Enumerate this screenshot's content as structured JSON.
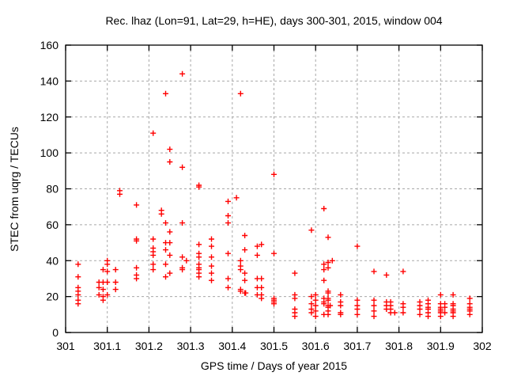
{
  "page": {
    "background": "#ffffff"
  },
  "chart_data": {
    "type": "scatter",
    "title": "Rec. lhaz (Lon=91, Lat=29, h=HE), days 300-301, 2015, window 004",
    "xlabel": "GPS time / Days of year 2015",
    "ylabel": "STEC from uqrg / TECUs",
    "xlim": [
      301,
      302
    ],
    "ylim": [
      0,
      160
    ],
    "xtick_labels": [
      "301",
      "301.1",
      "301.2",
      "301.3",
      "301.4",
      "301.5",
      "301.6",
      "301.7",
      "301.8",
      "301.9",
      "302"
    ],
    "xtick_values": [
      301,
      301.1,
      301.2,
      301.3,
      301.4,
      301.5,
      301.6,
      301.7,
      301.8,
      301.9,
      302
    ],
    "ytick_labels": [
      "0",
      "20",
      "40",
      "60",
      "80",
      "100",
      "120",
      "140",
      "160"
    ],
    "ytick_values": [
      0,
      20,
      40,
      60,
      80,
      100,
      120,
      140,
      160
    ],
    "grid": true,
    "grid_style": "dashed",
    "grid_color": "#a8a8a8",
    "frame_color": "#000000",
    "legend": "none",
    "marker": {
      "shape": "plus",
      "color": "#ff0000",
      "size": 7
    },
    "series": [
      {
        "name": "STEC",
        "points": [
          [
            301.03,
            38
          ],
          [
            301.03,
            31
          ],
          [
            301.03,
            25
          ],
          [
            301.03,
            23
          ],
          [
            301.03,
            21
          ],
          [
            301.03,
            18
          ],
          [
            301.03,
            16
          ],
          [
            301.08,
            28
          ],
          [
            301.08,
            25
          ],
          [
            301.08,
            21
          ],
          [
            301.09,
            35
          ],
          [
            301.09,
            28
          ],
          [
            301.09,
            24
          ],
          [
            301.09,
            20
          ],
          [
            301.09,
            18
          ],
          [
            301.1,
            40
          ],
          [
            301.1,
            38
          ],
          [
            301.1,
            34
          ],
          [
            301.1,
            28
          ],
          [
            301.1,
            21
          ],
          [
            301.12,
            35
          ],
          [
            301.12,
            28
          ],
          [
            301.12,
            24
          ],
          [
            301.13,
            79
          ],
          [
            301.13,
            77
          ],
          [
            301.17,
            71
          ],
          [
            301.17,
            52
          ],
          [
            301.17,
            51
          ],
          [
            301.17,
            36
          ],
          [
            301.17,
            32
          ],
          [
            301.17,
            30
          ],
          [
            301.21,
            111
          ],
          [
            301.21,
            52
          ],
          [
            301.21,
            47
          ],
          [
            301.21,
            45
          ],
          [
            301.21,
            43
          ],
          [
            301.21,
            38
          ],
          [
            301.21,
            35
          ],
          [
            301.23,
            68
          ],
          [
            301.23,
            66
          ],
          [
            301.24,
            133
          ],
          [
            301.24,
            61
          ],
          [
            301.24,
            50
          ],
          [
            301.24,
            46
          ],
          [
            301.24,
            38
          ],
          [
            301.24,
            31
          ],
          [
            301.25,
            102
          ],
          [
            301.25,
            95
          ],
          [
            301.25,
            56
          ],
          [
            301.25,
            50
          ],
          [
            301.25,
            43
          ],
          [
            301.25,
            33
          ],
          [
            301.28,
            144
          ],
          [
            301.28,
            92
          ],
          [
            301.28,
            61
          ],
          [
            301.28,
            42
          ],
          [
            301.28,
            36
          ],
          [
            301.28,
            35
          ],
          [
            301.29,
            40
          ],
          [
            301.32,
            82
          ],
          [
            301.32,
            81
          ],
          [
            301.32,
            49
          ],
          [
            301.32,
            44
          ],
          [
            301.32,
            42
          ],
          [
            301.32,
            38
          ],
          [
            301.32,
            36
          ],
          [
            301.32,
            35
          ],
          [
            301.32,
            33
          ],
          [
            301.32,
            31
          ],
          [
            301.35,
            52
          ],
          [
            301.35,
            48
          ],
          [
            301.35,
            42
          ],
          [
            301.35,
            37
          ],
          [
            301.35,
            33
          ],
          [
            301.35,
            29
          ],
          [
            301.39,
            73
          ],
          [
            301.39,
            65
          ],
          [
            301.39,
            61
          ],
          [
            301.39,
            44
          ],
          [
            301.39,
            30
          ],
          [
            301.39,
            25
          ],
          [
            301.41,
            75
          ],
          [
            301.42,
            133
          ],
          [
            301.42,
            40
          ],
          [
            301.42,
            37
          ],
          [
            301.42,
            35
          ],
          [
            301.42,
            24
          ],
          [
            301.42,
            23
          ],
          [
            301.43,
            54
          ],
          [
            301.43,
            46
          ],
          [
            301.43,
            33
          ],
          [
            301.43,
            29
          ],
          [
            301.43,
            22
          ],
          [
            301.432,
            22
          ],
          [
            301.46,
            48
          ],
          [
            301.46,
            43
          ],
          [
            301.46,
            30
          ],
          [
            301.46,
            25
          ],
          [
            301.46,
            21
          ],
          [
            301.47,
            49
          ],
          [
            301.47,
            30
          ],
          [
            301.47,
            25
          ],
          [
            301.47,
            21
          ],
          [
            301.47,
            19
          ],
          [
            301.5,
            88
          ],
          [
            301.5,
            44
          ],
          [
            301.5,
            19
          ],
          [
            301.5,
            18
          ],
          [
            301.5,
            17
          ],
          [
            301.5,
            16
          ],
          [
            301.55,
            33
          ],
          [
            301.55,
            21
          ],
          [
            301.55,
            19
          ],
          [
            301.55,
            13
          ],
          [
            301.55,
            11
          ],
          [
            301.55,
            9
          ],
          [
            301.59,
            57
          ],
          [
            301.59,
            20
          ],
          [
            301.59,
            16
          ],
          [
            301.59,
            13
          ],
          [
            301.59,
            11
          ],
          [
            301.6,
            21
          ],
          [
            301.6,
            18
          ],
          [
            301.6,
            15
          ],
          [
            301.6,
            12
          ],
          [
            301.6,
            9
          ],
          [
            301.62,
            69
          ],
          [
            301.62,
            38
          ],
          [
            301.62,
            35
          ],
          [
            301.62,
            29
          ],
          [
            301.62,
            19
          ],
          [
            301.62,
            17
          ],
          [
            301.62,
            16
          ],
          [
            301.62,
            10
          ],
          [
            301.63,
            53
          ],
          [
            301.63,
            39
          ],
          [
            301.63,
            36
          ],
          [
            301.63,
            23
          ],
          [
            301.63,
            22
          ],
          [
            301.63,
            19
          ],
          [
            301.63,
            18
          ],
          [
            301.63,
            15
          ],
          [
            301.635,
            15
          ],
          [
            301.63,
            14
          ],
          [
            301.63,
            12
          ],
          [
            301.63,
            10
          ],
          [
            301.64,
            40
          ],
          [
            301.66,
            21
          ],
          [
            301.66,
            17
          ],
          [
            301.66,
            15
          ],
          [
            301.66,
            11
          ],
          [
            301.66,
            10
          ],
          [
            301.7,
            48
          ],
          [
            301.7,
            18
          ],
          [
            301.7,
            15
          ],
          [
            301.7,
            13
          ],
          [
            301.7,
            10
          ],
          [
            301.74,
            34
          ],
          [
            301.74,
            18
          ],
          [
            301.74,
            15
          ],
          [
            301.74,
            12
          ],
          [
            301.74,
            9
          ],
          [
            301.77,
            32
          ],
          [
            301.77,
            17
          ],
          [
            301.77,
            15
          ],
          [
            301.77,
            13
          ],
          [
            301.78,
            17
          ],
          [
            301.78,
            15
          ],
          [
            301.78,
            13
          ],
          [
            301.78,
            11
          ],
          [
            301.79,
            11
          ],
          [
            301.81,
            34
          ],
          [
            301.81,
            16
          ],
          [
            301.81,
            14
          ],
          [
            301.81,
            11
          ],
          [
            301.85,
            17
          ],
          [
            301.85,
            15
          ],
          [
            301.85,
            13
          ],
          [
            301.85,
            10
          ],
          [
            301.87,
            18
          ],
          [
            301.87,
            16
          ],
          [
            301.87,
            14
          ],
          [
            301.87,
            13
          ],
          [
            301.87,
            11
          ],
          [
            301.87,
            9
          ],
          [
            301.9,
            21
          ],
          [
            301.9,
            16
          ],
          [
            301.9,
            14
          ],
          [
            301.9,
            13
          ],
          [
            301.9,
            12
          ],
          [
            301.9,
            11
          ],
          [
            301.9,
            9
          ],
          [
            301.91,
            16
          ],
          [
            301.91,
            14
          ],
          [
            301.91,
            11
          ],
          [
            301.93,
            21
          ],
          [
            301.93,
            16
          ],
          [
            301.93,
            15
          ],
          [
            301.93,
            13
          ],
          [
            301.93,
            12
          ],
          [
            301.93,
            11
          ],
          [
            301.93,
            9
          ],
          [
            301.97,
            19
          ],
          [
            301.97,
            16
          ],
          [
            301.97,
            14
          ],
          [
            301.97,
            13
          ],
          [
            301.97,
            12
          ],
          [
            301.97,
            10
          ]
        ]
      }
    ]
  }
}
